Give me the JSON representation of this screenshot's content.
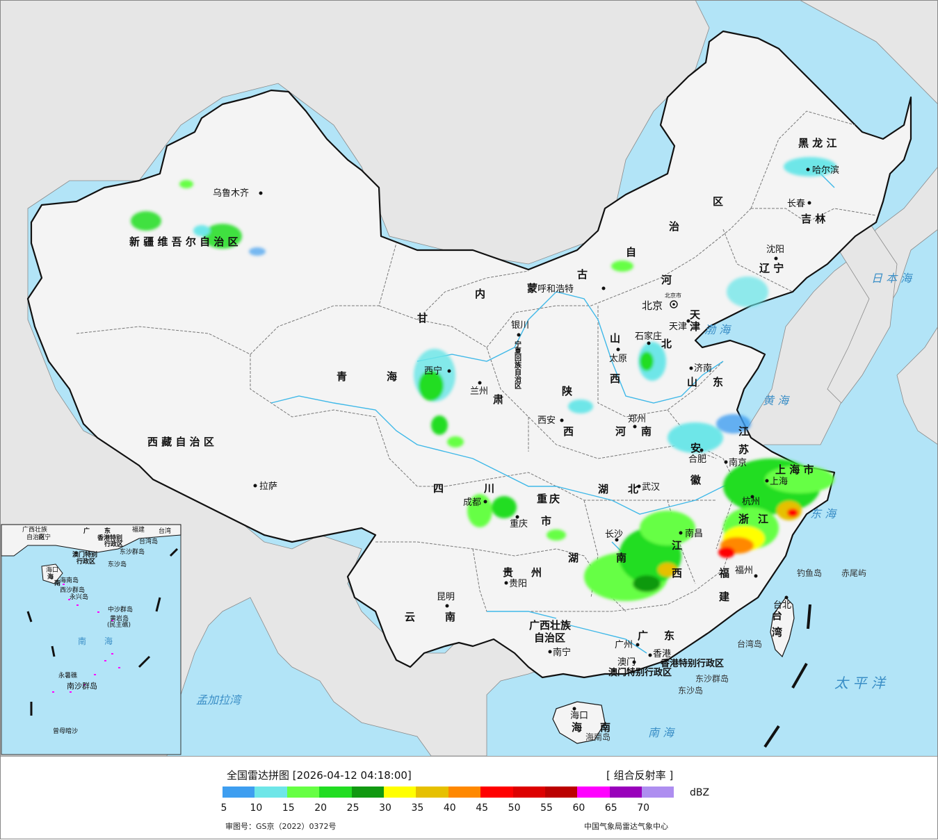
{
  "legend": {
    "title": "全国雷达拼图 [2026-04-12 04:18:00]",
    "product": "[ 组合反射率 ]",
    "unit": "dBZ",
    "ticks": [
      "5",
      "10",
      "15",
      "20",
      "25",
      "30",
      "35",
      "40",
      "45",
      "50",
      "55",
      "60",
      "65",
      "70"
    ],
    "colors": [
      "#3e9ef0",
      "#6ee6e8",
      "#66ff44",
      "#22dd22",
      "#119911",
      "#ffff00",
      "#e6c000",
      "#ff8800",
      "#ff0000",
      "#dd0000",
      "#bb0000",
      "#ff00ff",
      "#9900bb",
      "#ae8ef0"
    ],
    "approval": "审图号：GS京（2022）0372号",
    "agency": "中国气象局雷达气象中心"
  },
  "map": {
    "colors": {
      "sea": "#b2e4f7",
      "land_foreign": "#e6e6e6",
      "land_china": "#f4f4f4",
      "border": "#111111",
      "province": "#666666",
      "river": "#3eb8e8"
    },
    "provinces": [
      {
        "name": "黑 龙 江"
      },
      {
        "name": "吉 林"
      },
      {
        "name": "辽 宁"
      },
      {
        "name": "内"
      },
      {
        "name": "蒙"
      },
      {
        "name": "古"
      },
      {
        "name": "自"
      },
      {
        "name": "治"
      },
      {
        "name": "区"
      },
      {
        "name": "新 疆 维 吾 尔 自 治 区"
      },
      {
        "name": "西 藏 自 治 区"
      },
      {
        "name": "青"
      },
      {
        "name": "海"
      },
      {
        "name": "甘"
      },
      {
        "name": "肃"
      },
      {
        "name": "四"
      },
      {
        "name": "川"
      },
      {
        "name": "云"
      },
      {
        "name": "南"
      },
      {
        "name": "贵"
      },
      {
        "name": "州"
      },
      {
        "name": "广西壮族"
      },
      {
        "name": "自治区"
      },
      {
        "name": "广"
      },
      {
        "name": "东"
      },
      {
        "name": "湖"
      },
      {
        "name": "南"
      },
      {
        "name": "湖"
      },
      {
        "name": "北"
      },
      {
        "name": "河"
      },
      {
        "name": "南"
      },
      {
        "name": "山"
      },
      {
        "name": "西"
      },
      {
        "name": "陕"
      },
      {
        "name": "西"
      },
      {
        "name": "河"
      },
      {
        "name": "北"
      },
      {
        "name": "山"
      },
      {
        "name": "东"
      },
      {
        "name": "江"
      },
      {
        "name": "苏"
      },
      {
        "name": "安"
      },
      {
        "name": "徽"
      },
      {
        "name": "浙"
      },
      {
        "name": "江"
      },
      {
        "name": "江"
      },
      {
        "name": "西"
      },
      {
        "name": "福"
      },
      {
        "name": "建"
      },
      {
        "name": "台"
      },
      {
        "name": "湾"
      },
      {
        "name": "重"
      },
      {
        "name": "庆"
      },
      {
        "name": "市"
      },
      {
        "name": "海"
      },
      {
        "name": "南"
      },
      {
        "name": "上 海 市"
      },
      {
        "name": "天"
      },
      {
        "name": "津"
      },
      {
        "name": "宁夏回族自治区"
      }
    ],
    "cities": [
      {
        "name": "乌鲁木齐"
      },
      {
        "name": "哈尔滨"
      },
      {
        "name": "长春"
      },
      {
        "name": "沈阳"
      },
      {
        "name": "北京"
      },
      {
        "name": "北京市"
      },
      {
        "name": "天津"
      },
      {
        "name": "呼和浩特"
      },
      {
        "name": "石家庄"
      },
      {
        "name": "太原"
      },
      {
        "name": "济南"
      },
      {
        "name": "银川"
      },
      {
        "name": "西宁"
      },
      {
        "name": "兰州"
      },
      {
        "name": "西安"
      },
      {
        "name": "郑州"
      },
      {
        "name": "合肥"
      },
      {
        "name": "南京"
      },
      {
        "name": "上海"
      },
      {
        "name": "杭州"
      },
      {
        "name": "武汉"
      },
      {
        "name": "成都"
      },
      {
        "name": "重庆"
      },
      {
        "name": "长沙"
      },
      {
        "name": "南昌"
      },
      {
        "name": "福州"
      },
      {
        "name": "台北"
      },
      {
        "name": "贵阳"
      },
      {
        "name": "昆明"
      },
      {
        "name": "南宁"
      },
      {
        "name": "广州"
      },
      {
        "name": "澳门"
      },
      {
        "name": "香港"
      },
      {
        "name": "海口"
      },
      {
        "name": "拉萨"
      }
    ],
    "seas": [
      {
        "name": "日 本 海"
      },
      {
        "name": "渤 海"
      },
      {
        "name": "黄 海"
      },
      {
        "name": "东 海"
      },
      {
        "name": "太 平 洋"
      },
      {
        "name": "南 海"
      },
      {
        "name": "孟加拉湾"
      }
    ],
    "islands": [
      {
        "name": "钓鱼岛"
      },
      {
        "name": "赤尾屿"
      },
      {
        "name": "台湾岛"
      },
      {
        "name": "东沙群岛"
      },
      {
        "name": "东沙岛"
      },
      {
        "name": "海南岛"
      }
    ],
    "special": [
      {
        "name": "香港特别行政区"
      },
      {
        "name": "澳门特别行政区"
      }
    ],
    "inset": {
      "labels": [
        {
          "name": "广西壮族"
        },
        {
          "name": "自治区"
        },
        {
          "name": "广"
        },
        {
          "name": "东"
        },
        {
          "name": "福建"
        },
        {
          "name": "台湾"
        },
        {
          "name": "南宁"
        },
        {
          "name": "香港特别"
        },
        {
          "name": "行政区"
        },
        {
          "name": "澳门特别"
        },
        {
          "name": "行政区"
        },
        {
          "name": "台湾岛"
        },
        {
          "name": "东沙群岛"
        },
        {
          "name": "东沙岛"
        },
        {
          "name": "海口"
        },
        {
          "name": "海"
        },
        {
          "name": "南"
        },
        {
          "name": "海南岛"
        },
        {
          "name": "西沙群岛"
        },
        {
          "name": "永兴岛"
        },
        {
          "name": "中沙群岛"
        },
        {
          "name": "黄岩岛"
        },
        {
          "name": "(民主礁)"
        },
        {
          "name": "南"
        },
        {
          "name": "海"
        },
        {
          "name": "永暑礁"
        },
        {
          "name": "南沙群岛"
        },
        {
          "name": "曾母暗沙"
        }
      ]
    }
  }
}
